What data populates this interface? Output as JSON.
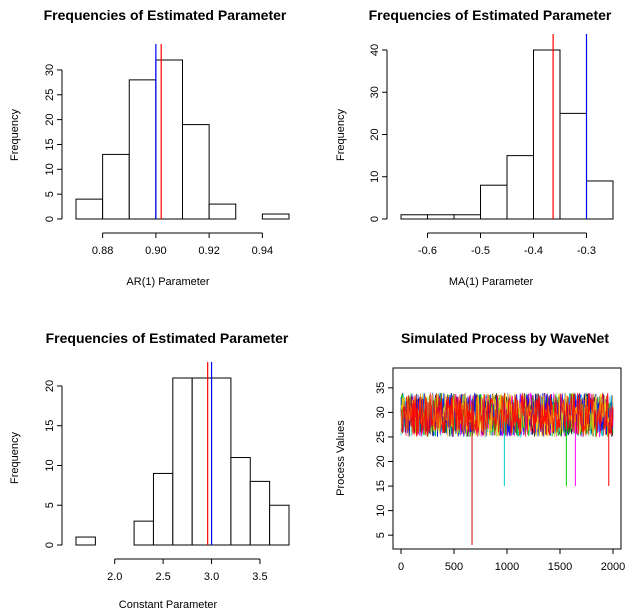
{
  "chart_data": [
    {
      "type": "bar",
      "title": "Frequencies of Estimated Parameter",
      "xlabel": "AR(1) Parameter",
      "ylabel": "Frequency",
      "bins": [
        [
          0.87,
          0.88
        ],
        [
          0.88,
          0.89
        ],
        [
          0.89,
          0.9
        ],
        [
          0.9,
          0.91
        ],
        [
          0.91,
          0.92
        ],
        [
          0.92,
          0.93
        ],
        [
          0.93,
          0.94
        ],
        [
          0.94,
          0.95
        ]
      ],
      "values": [
        4,
        13,
        28,
        32,
        19,
        3,
        0,
        1
      ],
      "xlim": [
        0.87,
        0.95
      ],
      "ylim": [
        0,
        32
      ],
      "xticks": [
        0.88,
        0.9,
        0.92,
        0.94
      ],
      "xticklabels": [
        "0.88",
        "0.90",
        "0.92",
        "0.94"
      ],
      "yticks": [
        0,
        5,
        10,
        15,
        20,
        25,
        30
      ],
      "vlines": [
        {
          "x": 0.9,
          "color": "#0000ff"
        },
        {
          "x": 0.902,
          "color": "#ff0000"
        }
      ]
    },
    {
      "type": "bar",
      "title": "Frequencies of Estimated Parameter",
      "xlabel": "MA(1) Parameter",
      "ylabel": "Frequency",
      "bins": [
        [
          -0.65,
          -0.6
        ],
        [
          -0.6,
          -0.55
        ],
        [
          -0.55,
          -0.5
        ],
        [
          -0.5,
          -0.45
        ],
        [
          -0.45,
          -0.4
        ],
        [
          -0.4,
          -0.35
        ],
        [
          -0.35,
          -0.3
        ],
        [
          -0.3,
          -0.25
        ]
      ],
      "values": [
        1,
        1,
        1,
        8,
        15,
        40,
        25,
        9
      ],
      "xlim": [
        -0.65,
        -0.25
      ],
      "ylim": [
        0,
        40
      ],
      "xticks": [
        -0.6,
        -0.5,
        -0.4,
        -0.3
      ],
      "xticklabels": [
        "-0.6",
        "-0.5",
        "-0.4",
        "-0.3"
      ],
      "yticks": [
        0,
        10,
        20,
        30,
        40
      ],
      "vlines": [
        {
          "x": -0.3,
          "color": "#0000ff"
        },
        {
          "x": -0.363,
          "color": "#ff0000"
        }
      ]
    },
    {
      "type": "bar",
      "title": "Frequencies of Estimated Parameter",
      "xlabel": "Constant Parameter",
      "ylabel": "Frequency",
      "bins": [
        [
          1.6,
          1.8
        ],
        [
          1.8,
          2.0
        ],
        [
          2.0,
          2.2
        ],
        [
          2.2,
          2.4
        ],
        [
          2.4,
          2.6
        ],
        [
          2.6,
          2.8
        ],
        [
          2.8,
          3.0
        ],
        [
          3.0,
          3.2
        ],
        [
          3.2,
          3.4
        ],
        [
          3.4,
          3.6
        ],
        [
          3.6,
          3.8
        ]
      ],
      "values": [
        1,
        0,
        0,
        3,
        9,
        21,
        21,
        21,
        11,
        8,
        5
      ],
      "xlim": [
        1.6,
        3.8
      ],
      "ylim": [
        0,
        21
      ],
      "xticks": [
        2.0,
        2.5,
        3.0,
        3.5
      ],
      "xticklabels": [
        "2.0",
        "2.5",
        "3.0",
        "3.5"
      ],
      "yticks": [
        0,
        5,
        10,
        15,
        20
      ],
      "vlines": [
        {
          "x": 3.0,
          "color": "#0000ff"
        },
        {
          "x": 2.96,
          "color": "#ff0000"
        }
      ]
    },
    {
      "type": "line",
      "title": "Simulated Process by WaveNet",
      "xlabel": "",
      "ylabel": "Process Values",
      "xlim": [
        0,
        2000
      ],
      "ylim": [
        3,
        37
      ],
      "xticks": [
        0,
        500,
        1000,
        1500,
        2000
      ],
      "xticklabels": [
        "0",
        "500",
        "1000",
        "1500",
        "2000"
      ],
      "yticks": [
        5,
        10,
        15,
        20,
        25,
        30,
        35
      ],
      "n_points": 2000,
      "band": [
        25,
        34
      ],
      "series_colors": [
        "#000000",
        "#00cccc",
        "#ff00ff",
        "#00cc00",
        "#0000ff",
        "#ffcc00",
        "#ff0000"
      ],
      "spikes": [
        {
          "x": 670,
          "y": 3,
          "color": "#cc0000"
        },
        {
          "x": 975,
          "y": 15,
          "color": "#00cccc"
        },
        {
          "x": 1560,
          "y": 15,
          "color": "#00cc00"
        },
        {
          "x": 1645,
          "y": 15,
          "color": "#ff00ff"
        },
        {
          "x": 1960,
          "y": 15,
          "color": "#ff0000"
        }
      ]
    }
  ]
}
